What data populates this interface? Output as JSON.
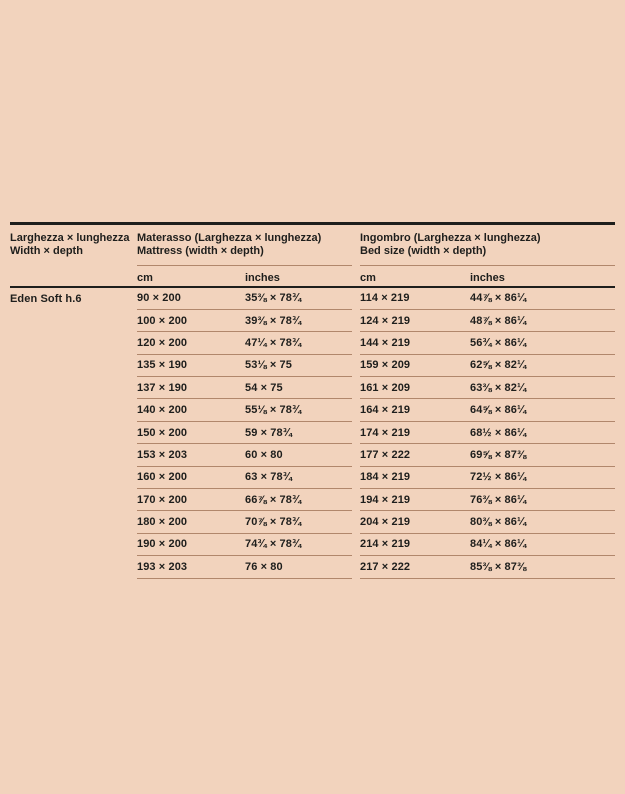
{
  "page": {
    "background": "#f2d3bd",
    "text_color": "#1e1e1c",
    "rule_dark": "#1e1e1c",
    "rule_light": "#b1876c"
  },
  "table": {
    "col1_header": "Larghezza × lunghezza\nWidth × depth",
    "group_mattress_header": "Materasso (Larghezza × lunghezza)\nMattress (width × depth)",
    "group_bed_header": "Ingombro (Larghezza × lunghezza)\nBed size (width × depth)",
    "subheaders": {
      "cm": "cm",
      "inches": "inches"
    },
    "row_label": "Eden Soft h.6",
    "rows": [
      {
        "m_cm": "90 × 200",
        "m_in": "35⅜ × 78¾",
        "b_cm": "114 × 219",
        "b_in": "44⅞ × 86¼"
      },
      {
        "m_cm": "100 × 200",
        "m_in": "39⅜ × 78¾",
        "b_cm": "124 × 219",
        "b_in": "48⅞ × 86¼"
      },
      {
        "m_cm": "120 × 200",
        "m_in": "47¼ × 78¾",
        "b_cm": "144 × 219",
        "b_in": "56¾ × 86¼"
      },
      {
        "m_cm": "135 × 190",
        "m_in": "53⅛ × 75",
        "b_cm": "159 × 209",
        "b_in": "62⅝ × 82¼"
      },
      {
        "m_cm": "137 × 190",
        "m_in": "54 × 75",
        "b_cm": "161 × 209",
        "b_in": "63⅜ × 82¼"
      },
      {
        "m_cm": "140 × 200",
        "m_in": "55⅛ × 78¾",
        "b_cm": "164 × 219",
        "b_in": "64⅝ × 86¼"
      },
      {
        "m_cm": "150 × 200",
        "m_in": "59 × 78¾",
        "b_cm": "174 × 219",
        "b_in": "68½ × 86¼"
      },
      {
        "m_cm": "153 × 203",
        "m_in": "60 × 80",
        "b_cm": "177 × 222",
        "b_in": "69⅝ × 87⅜"
      },
      {
        "m_cm": "160 × 200",
        "m_in": "63 × 78¾",
        "b_cm": "184 × 219",
        "b_in": "72½ × 86¼"
      },
      {
        "m_cm": "170 × 200",
        "m_in": "66⅞ × 78¾",
        "b_cm": "194 × 219",
        "b_in": "76⅜ × 86¼"
      },
      {
        "m_cm": "180 × 200",
        "m_in": "70⅞ × 78¾",
        "b_cm": "204 × 219",
        "b_in": "80⅜ × 86¼"
      },
      {
        "m_cm": "190 × 200",
        "m_in": "74¾ × 78¾",
        "b_cm": "214 × 219",
        "b_in": "84¼ × 86¼"
      },
      {
        "m_cm": "193 × 203",
        "m_in": "76 × 80",
        "b_cm": "217 × 222",
        "b_in": "85⅜ × 87⅜"
      }
    ]
  }
}
